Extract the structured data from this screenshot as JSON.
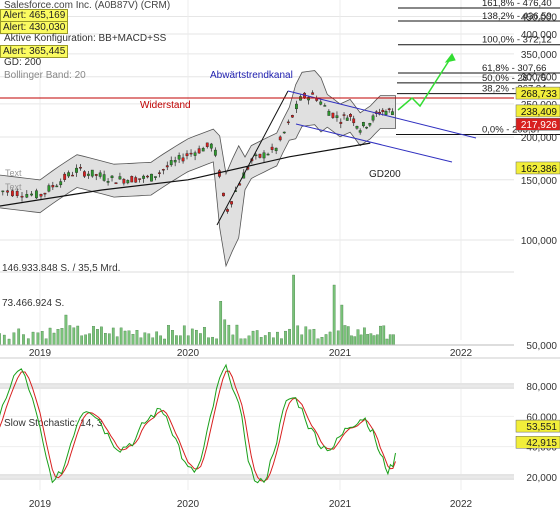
{
  "header": {
    "title": "Salesforce.com Inc. (A0B87V) (CRM)",
    "alerts": [
      "Alert: 465,169",
      "Alert: 430,030",
      "Alert: 365,445"
    ],
    "config": "Aktive Konfiguration: BB+MACD+SS",
    "gd": "GD: 200",
    "bollinger": "Bollinger Band: 20"
  },
  "annotations": {
    "channel": "Abwärtstrendkanal",
    "resistance": "Widerstand",
    "gd200": "GD200",
    "text1": "Text",
    "text2": "Text"
  },
  "fib_levels": [
    {
      "label": "161,8% - 476,40",
      "value": 476.4
    },
    {
      "label": "138,2% - 436,59",
      "value": 436.59
    },
    {
      "label": "100,0% - 372,12",
      "value": 372.12
    },
    {
      "label": "61,8% - 307,66",
      "value": 307.66
    },
    {
      "label": "50,0% - 287,75",
      "value": 287.75
    },
    {
      "label": "38,2% - 267,84",
      "value": 267.84
    },
    {
      "label": "0,0% - 203,37",
      "value": 203.37
    }
  ],
  "price_badges": [
    {
      "label": "268,733",
      "value": 268.733,
      "color": "#f2ee3a"
    },
    {
      "label": "238,409",
      "value": 238.409,
      "color": "#f2ee3a"
    },
    {
      "label": "217,926",
      "value": 217.926,
      "color": "#d8201f"
    },
    {
      "label": "162,386",
      "value": 162.386,
      "color": "#f2ee3a"
    }
  ],
  "volume": {
    "max_label": "146.933.848 S. / 35,5 Mrd.",
    "mid_label": "73.466.924 S."
  },
  "stochastic": {
    "label": "Slow Stochastic: 14, 3",
    "k_label": "53,551",
    "d_label": "42,915"
  },
  "chart_data": [
    {
      "type": "candlestick",
      "title": "Salesforce.com Inc. (A0B87V) (CRM)",
      "y_scale": "log",
      "x_ticks": [
        "2019",
        "2020",
        "2021",
        "2022"
      ],
      "y_ticks": [
        "450,000",
        "400,000",
        "350,000",
        "300,000",
        "250,000",
        "200,000",
        "150,000",
        "100,000"
      ],
      "series": [
        {
          "name": "Kurs",
          "x": [
            "2018-10",
            "2019-01",
            "2019-04",
            "2019-07",
            "2019-10",
            "2020-01",
            "2020-03",
            "2020-06",
            "2020-09",
            "2020-12",
            "2021-03",
            "2021-06"
          ],
          "values": [
            140,
            135,
            160,
            150,
            155,
            185,
            120,
            185,
            262,
            225,
            212,
            238
          ]
        },
        {
          "name": "GD200",
          "x": [
            "2018-10",
            "2019-06",
            "2020-01",
            "2020-09",
            "2021-04"
          ],
          "values": [
            125,
            140,
            150,
            175,
            192
          ]
        }
      ]
    },
    {
      "type": "bar",
      "title": "Volumen",
      "y_ticks": [
        "146.933.848 S. / 35,5 Mrd.",
        "73.466.924 S."
      ],
      "x_ticks": [
        "2019",
        "2020",
        "2021",
        "2022"
      ]
    },
    {
      "type": "line",
      "title": "Slow Stochastic: 14, 3",
      "y_ticks": [
        "80,000",
        "60,000",
        "40,000",
        "20,000"
      ],
      "x_ticks": [
        "2019",
        "2020",
        "2021",
        "2022"
      ],
      "ylim": [
        0,
        100
      ],
      "series": [
        {
          "name": "%K",
          "last": 53.551
        },
        {
          "name": "%D",
          "last": 42.915
        }
      ]
    }
  ],
  "axes": {
    "price_ticks": [
      {
        "label": "450,000",
        "value": 450
      },
      {
        "label": "400,000",
        "value": 400
      },
      {
        "label": "350,000",
        "value": 350
      },
      {
        "label": "300,000",
        "value": 300
      },
      {
        "label": "250,000",
        "value": 250
      },
      {
        "label": "200,000",
        "value": 200
      },
      {
        "label": "150,000",
        "value": 150
      },
      {
        "label": "100,000",
        "value": 100
      }
    ],
    "volume_ticks": [
      "50,000"
    ],
    "stoch_ticks": [
      {
        "label": "80,000",
        "value": 80
      },
      {
        "label": "60,000",
        "value": 60
      },
      {
        "label": "40,000",
        "value": 40
      },
      {
        "label": "20,000",
        "value": 20
      }
    ],
    "years": [
      "2019",
      "2020",
      "2021",
      "2022"
    ]
  },
  "colors": {
    "up": "#2d9a2d",
    "down": "#d8201f",
    "band": "#e0e0e0",
    "channel": "#3030c0",
    "resistance": "#c00000",
    "arrow": "#33dd33",
    "volume": "#7ac27a",
    "stoch_k": "#1aa01a",
    "stoch_d": "#d8201f"
  }
}
